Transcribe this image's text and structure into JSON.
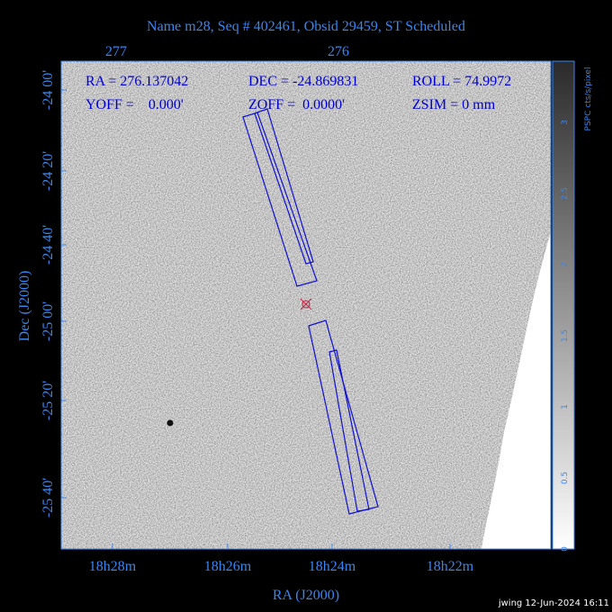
{
  "header": {
    "title": "Name m28, Seq # 402461, Obsid 29459, ST Scheduled"
  },
  "top_axis": {
    "ticks": [
      "277",
      "276"
    ]
  },
  "annotations": [
    "RA = 276.137042",
    "DEC = -24.869831",
    "ROLL = 74.9972",
    "YOFF =    0.000'",
    "ZOFF =  0.0000'",
    "ZSIM = 0 mm"
  ],
  "y_axis": {
    "label": "Dec (J2000)",
    "ticks": [
      "-24 00'",
      "-24 20'",
      "-24 40'",
      "-25 00'",
      "-25 20'",
      "-25 40'"
    ]
  },
  "x_axis": {
    "label": "RA (J2000)",
    "ticks": [
      "18h28m",
      "18h26m",
      "18h24m",
      "18h22m"
    ]
  },
  "colorbar": {
    "label": "PSPC cts/s/pixel",
    "ticks": [
      "0",
      "0.5",
      "1",
      "1.5",
      "2",
      "2.5",
      "3"
    ]
  },
  "footer": "jwing 12-Jun-2024 16:11"
}
